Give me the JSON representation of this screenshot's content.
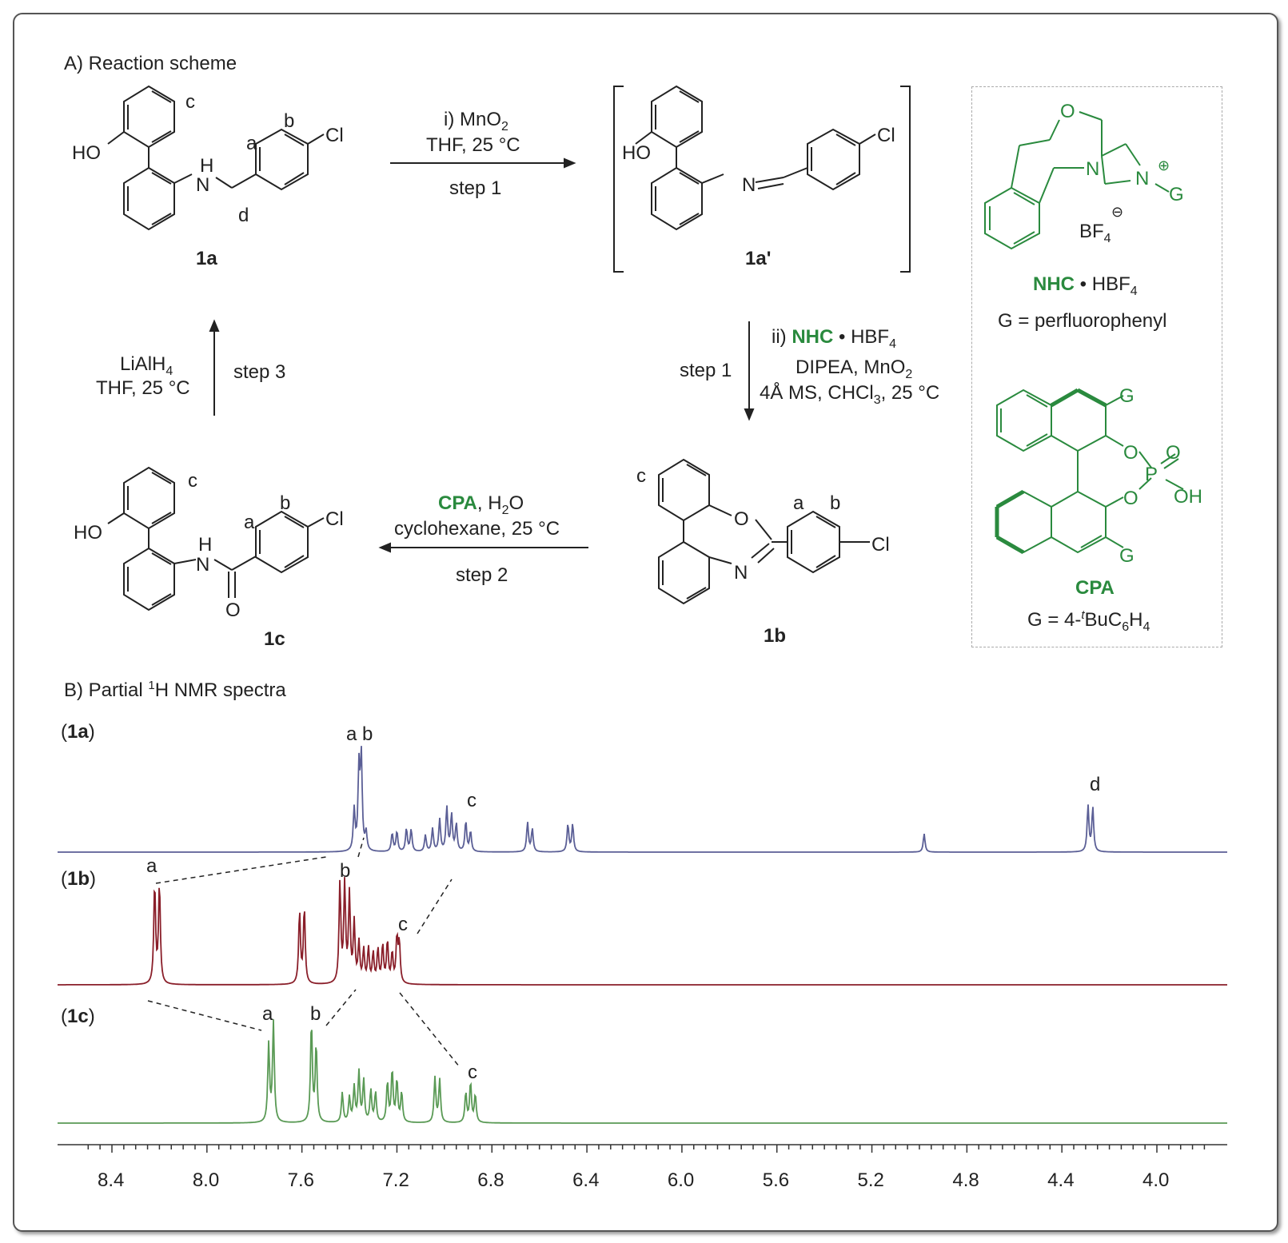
{
  "section_a": "A) Reaction scheme",
  "section_b_pre": "B) Partial ",
  "section_b_sup": "1",
  "section_b_post": "H NMR spectra",
  "compounds": {
    "c1a": "1a",
    "c1a_prime": "1a'",
    "c1b": "1b",
    "c1c": "1c"
  },
  "step1_top": {
    "line1_pre": "i) MnO",
    "line1_sub": "2",
    "line2": "THF, 25 °C",
    "step": "step 1"
  },
  "step1_down": {
    "line1_pre": "ii) ",
    "line1_green": "NHC",
    "line1_post": " • HBF",
    "line1_sub": "4",
    "line2_pre": "DIPEA, MnO",
    "line2_sub": "2",
    "line3_pre": "4Å MS, CHCl",
    "line3_sub": "3",
    "line3_post": ", 25 °C",
    "step": "step 1"
  },
  "step2": {
    "line1_green": "CPA",
    "line1_post": ", H",
    "line1_sub": "2",
    "line1_end": "O",
    "line2": "cyclohexane, 25 °C",
    "step": "step 2"
  },
  "step3": {
    "line1_pre": "LiAlH",
    "line1_sub": "4",
    "line2": "THF, 25 °C",
    "step": "step 3"
  },
  "catalysts": {
    "nhc_green": "NHC",
    "nhc_post": " • HBF",
    "nhc_sub": "4",
    "nhc_g": "G = perfluorophenyl",
    "bf4_pre": "BF",
    "bf4_sub": "4",
    "cpa_label": "CPA",
    "cpa_g_pre": "G = 4-",
    "cpa_g_sup": "t",
    "cpa_g_mid": "BuC",
    "cpa_g_sub1": "6",
    "cpa_g_mid2": "H",
    "cpa_g_sub2": "4"
  },
  "atoms": {
    "HO": "HO",
    "Cl": "Cl",
    "N": "N",
    "H": "H",
    "O": "O",
    "P": "P",
    "OH": "OH",
    "G": "G"
  },
  "site_labels": {
    "a": "a",
    "b": "b",
    "c": "c",
    "d": "d",
    "ab": "a b"
  },
  "colors": {
    "spectrum_1a": "#5b5f96",
    "spectrum_1b": "#8a1f2a",
    "spectrum_1c": "#5a9a55",
    "catalyst_green": "#2a8a3e"
  },
  "chart_data": {
    "type": "line",
    "xlabel": "",
    "ylabel": "",
    "xlim": [
      8.4,
      4.0
    ],
    "x_reversed": true,
    "x_ticks": [
      "8.4",
      "8.0",
      "7.6",
      "7.2",
      "6.8",
      "6.4",
      "6.0",
      "5.6",
      "5.2",
      "4.8",
      "4.4",
      "4.0"
    ],
    "series": [
      {
        "name": "(1a)",
        "peaks": [
          {
            "ppm": 7.36,
            "height": 0.88
          },
          {
            "ppm": 7.35,
            "height": 1.0
          },
          {
            "ppm": 7.38,
            "height": 0.45
          },
          {
            "ppm": 7.33,
            "height": 0.2
          },
          {
            "ppm": 7.22,
            "height": 0.2
          },
          {
            "ppm": 7.2,
            "height": 0.22
          },
          {
            "ppm": 7.16,
            "height": 0.25
          },
          {
            "ppm": 7.14,
            "height": 0.24
          },
          {
            "ppm": 7.08,
            "height": 0.18
          },
          {
            "ppm": 7.05,
            "height": 0.25
          },
          {
            "ppm": 7.02,
            "height": 0.35
          },
          {
            "ppm": 6.99,
            "height": 0.48
          },
          {
            "ppm": 6.97,
            "height": 0.4
          },
          {
            "ppm": 6.95,
            "height": 0.3
          },
          {
            "ppm": 6.91,
            "height": 0.33
          },
          {
            "ppm": 6.89,
            "height": 0.22
          },
          {
            "ppm": 6.65,
            "height": 0.32
          },
          {
            "ppm": 6.63,
            "height": 0.25
          },
          {
            "ppm": 6.48,
            "height": 0.3
          },
          {
            "ppm": 6.46,
            "height": 0.3
          },
          {
            "ppm": 4.98,
            "height": 0.2
          },
          {
            "ppm": 4.29,
            "height": 0.5
          },
          {
            "ppm": 4.27,
            "height": 0.48
          }
        ],
        "labels": [
          {
            "text": "a b",
            "ppm": 7.36
          },
          {
            "text": "c",
            "ppm": 6.9
          },
          {
            "text": "d",
            "ppm": 4.28
          }
        ]
      },
      {
        "name": "(1b)",
        "peaks": [
          {
            "ppm": 8.22,
            "height": 1.0
          },
          {
            "ppm": 8.2,
            "height": 1.0
          },
          {
            "ppm": 7.61,
            "height": 0.72
          },
          {
            "ppm": 7.59,
            "height": 0.76
          },
          {
            "ppm": 7.44,
            "height": 1.0
          },
          {
            "ppm": 7.42,
            "height": 0.98
          },
          {
            "ppm": 7.4,
            "height": 0.88
          },
          {
            "ppm": 7.38,
            "height": 0.6
          },
          {
            "ppm": 7.36,
            "height": 0.4
          },
          {
            "ppm": 7.34,
            "height": 0.33
          },
          {
            "ppm": 7.32,
            "height": 0.35
          },
          {
            "ppm": 7.3,
            "height": 0.3
          },
          {
            "ppm": 7.28,
            "height": 0.34
          },
          {
            "ppm": 7.26,
            "height": 0.38
          },
          {
            "ppm": 7.24,
            "height": 0.42
          },
          {
            "ppm": 7.22,
            "height": 0.3
          },
          {
            "ppm": 7.2,
            "height": 0.45
          },
          {
            "ppm": 7.19,
            "height": 0.4
          }
        ],
        "labels": [
          {
            "text": "a",
            "ppm": 8.21
          },
          {
            "text": "b",
            "ppm": 7.43
          },
          {
            "text": "c",
            "ppm": 7.2
          }
        ]
      },
      {
        "name": "(1c)",
        "peaks": [
          {
            "ppm": 7.74,
            "height": 0.78
          },
          {
            "ppm": 7.72,
            "height": 1.0
          },
          {
            "ppm": 7.56,
            "height": 1.0
          },
          {
            "ppm": 7.54,
            "height": 0.78
          },
          {
            "ppm": 7.43,
            "height": 0.3
          },
          {
            "ppm": 7.4,
            "height": 0.25
          },
          {
            "ppm": 7.38,
            "height": 0.35
          },
          {
            "ppm": 7.36,
            "height": 0.5
          },
          {
            "ppm": 7.34,
            "height": 0.42
          },
          {
            "ppm": 7.31,
            "height": 0.32
          },
          {
            "ppm": 7.29,
            "height": 0.3
          },
          {
            "ppm": 7.24,
            "height": 0.4
          },
          {
            "ppm": 7.22,
            "height": 0.52
          },
          {
            "ppm": 7.2,
            "height": 0.42
          },
          {
            "ppm": 7.18,
            "height": 0.3
          },
          {
            "ppm": 7.04,
            "height": 0.45
          },
          {
            "ppm": 7.02,
            "height": 0.43
          },
          {
            "ppm": 6.91,
            "height": 0.3
          },
          {
            "ppm": 6.89,
            "height": 0.4
          },
          {
            "ppm": 6.87,
            "height": 0.28
          }
        ],
        "labels": [
          {
            "text": "a",
            "ppm": 7.73
          },
          {
            "text": "b",
            "ppm": 7.55
          },
          {
            "text": "c",
            "ppm": 6.89
          }
        ]
      }
    ]
  }
}
